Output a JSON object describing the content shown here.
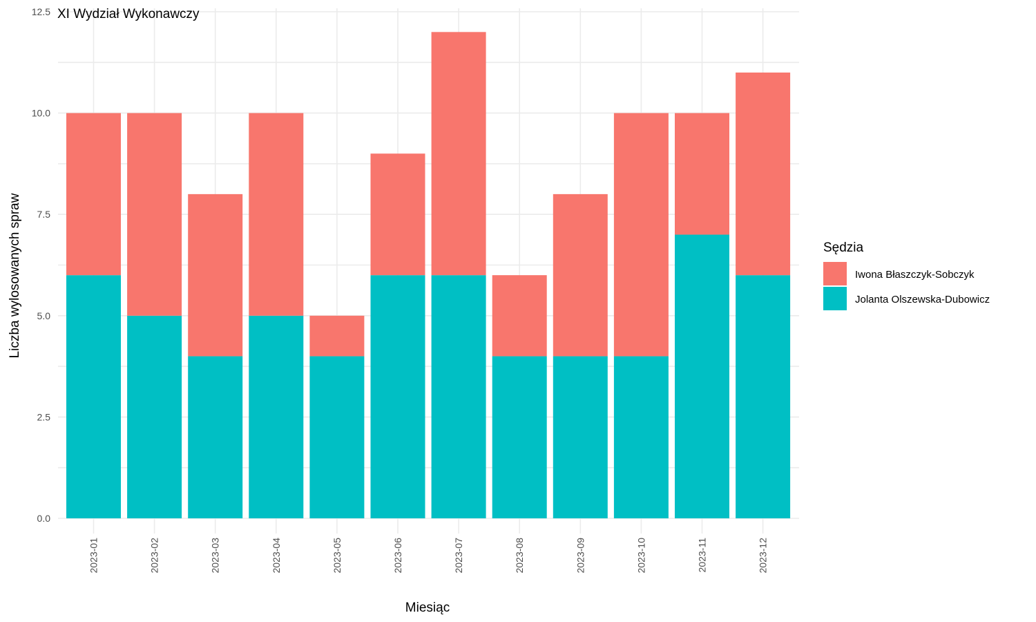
{
  "chart_data": {
    "type": "bar",
    "stacked": true,
    "title": "XI Wydział Wykonawczy",
    "xlabel": "Miesiąc",
    "ylabel": "Liczba wylosowanych spraw",
    "categories": [
      "2023-01",
      "2023-02",
      "2023-03",
      "2023-04",
      "2023-05",
      "2023-06",
      "2023-07",
      "2023-08",
      "2023-09",
      "2023-10",
      "2023-11",
      "2023-12"
    ],
    "series": [
      {
        "name": "Jolanta Olszewska-Dubowicz",
        "color": "#00BFC4",
        "values": [
          6,
          5,
          4,
          5,
          4,
          6,
          6,
          4,
          4,
          4,
          7,
          6
        ]
      },
      {
        "name": "Iwona Błaszczyk-Sobczyk",
        "color": "#F8766D",
        "values": [
          4,
          5,
          4,
          5,
          1,
          3,
          6,
          2,
          4,
          6,
          3,
          5
        ]
      }
    ],
    "ylim": [
      0,
      12.5
    ],
    "yticks": [
      "0.0",
      "2.5",
      "5.0",
      "7.5",
      "10.0",
      "12.5"
    ],
    "ytick_values": [
      0,
      2.5,
      5,
      7.5,
      10,
      12.5
    ],
    "legend": {
      "title": "Sędzia",
      "placement": "right",
      "items": [
        {
          "label": "Iwona Błaszczyk-Sobczyk",
          "color": "#F8766D"
        },
        {
          "label": "Jolanta Olszewska-Dubowicz",
          "color": "#00BFC4"
        }
      ]
    },
    "grid": true
  }
}
